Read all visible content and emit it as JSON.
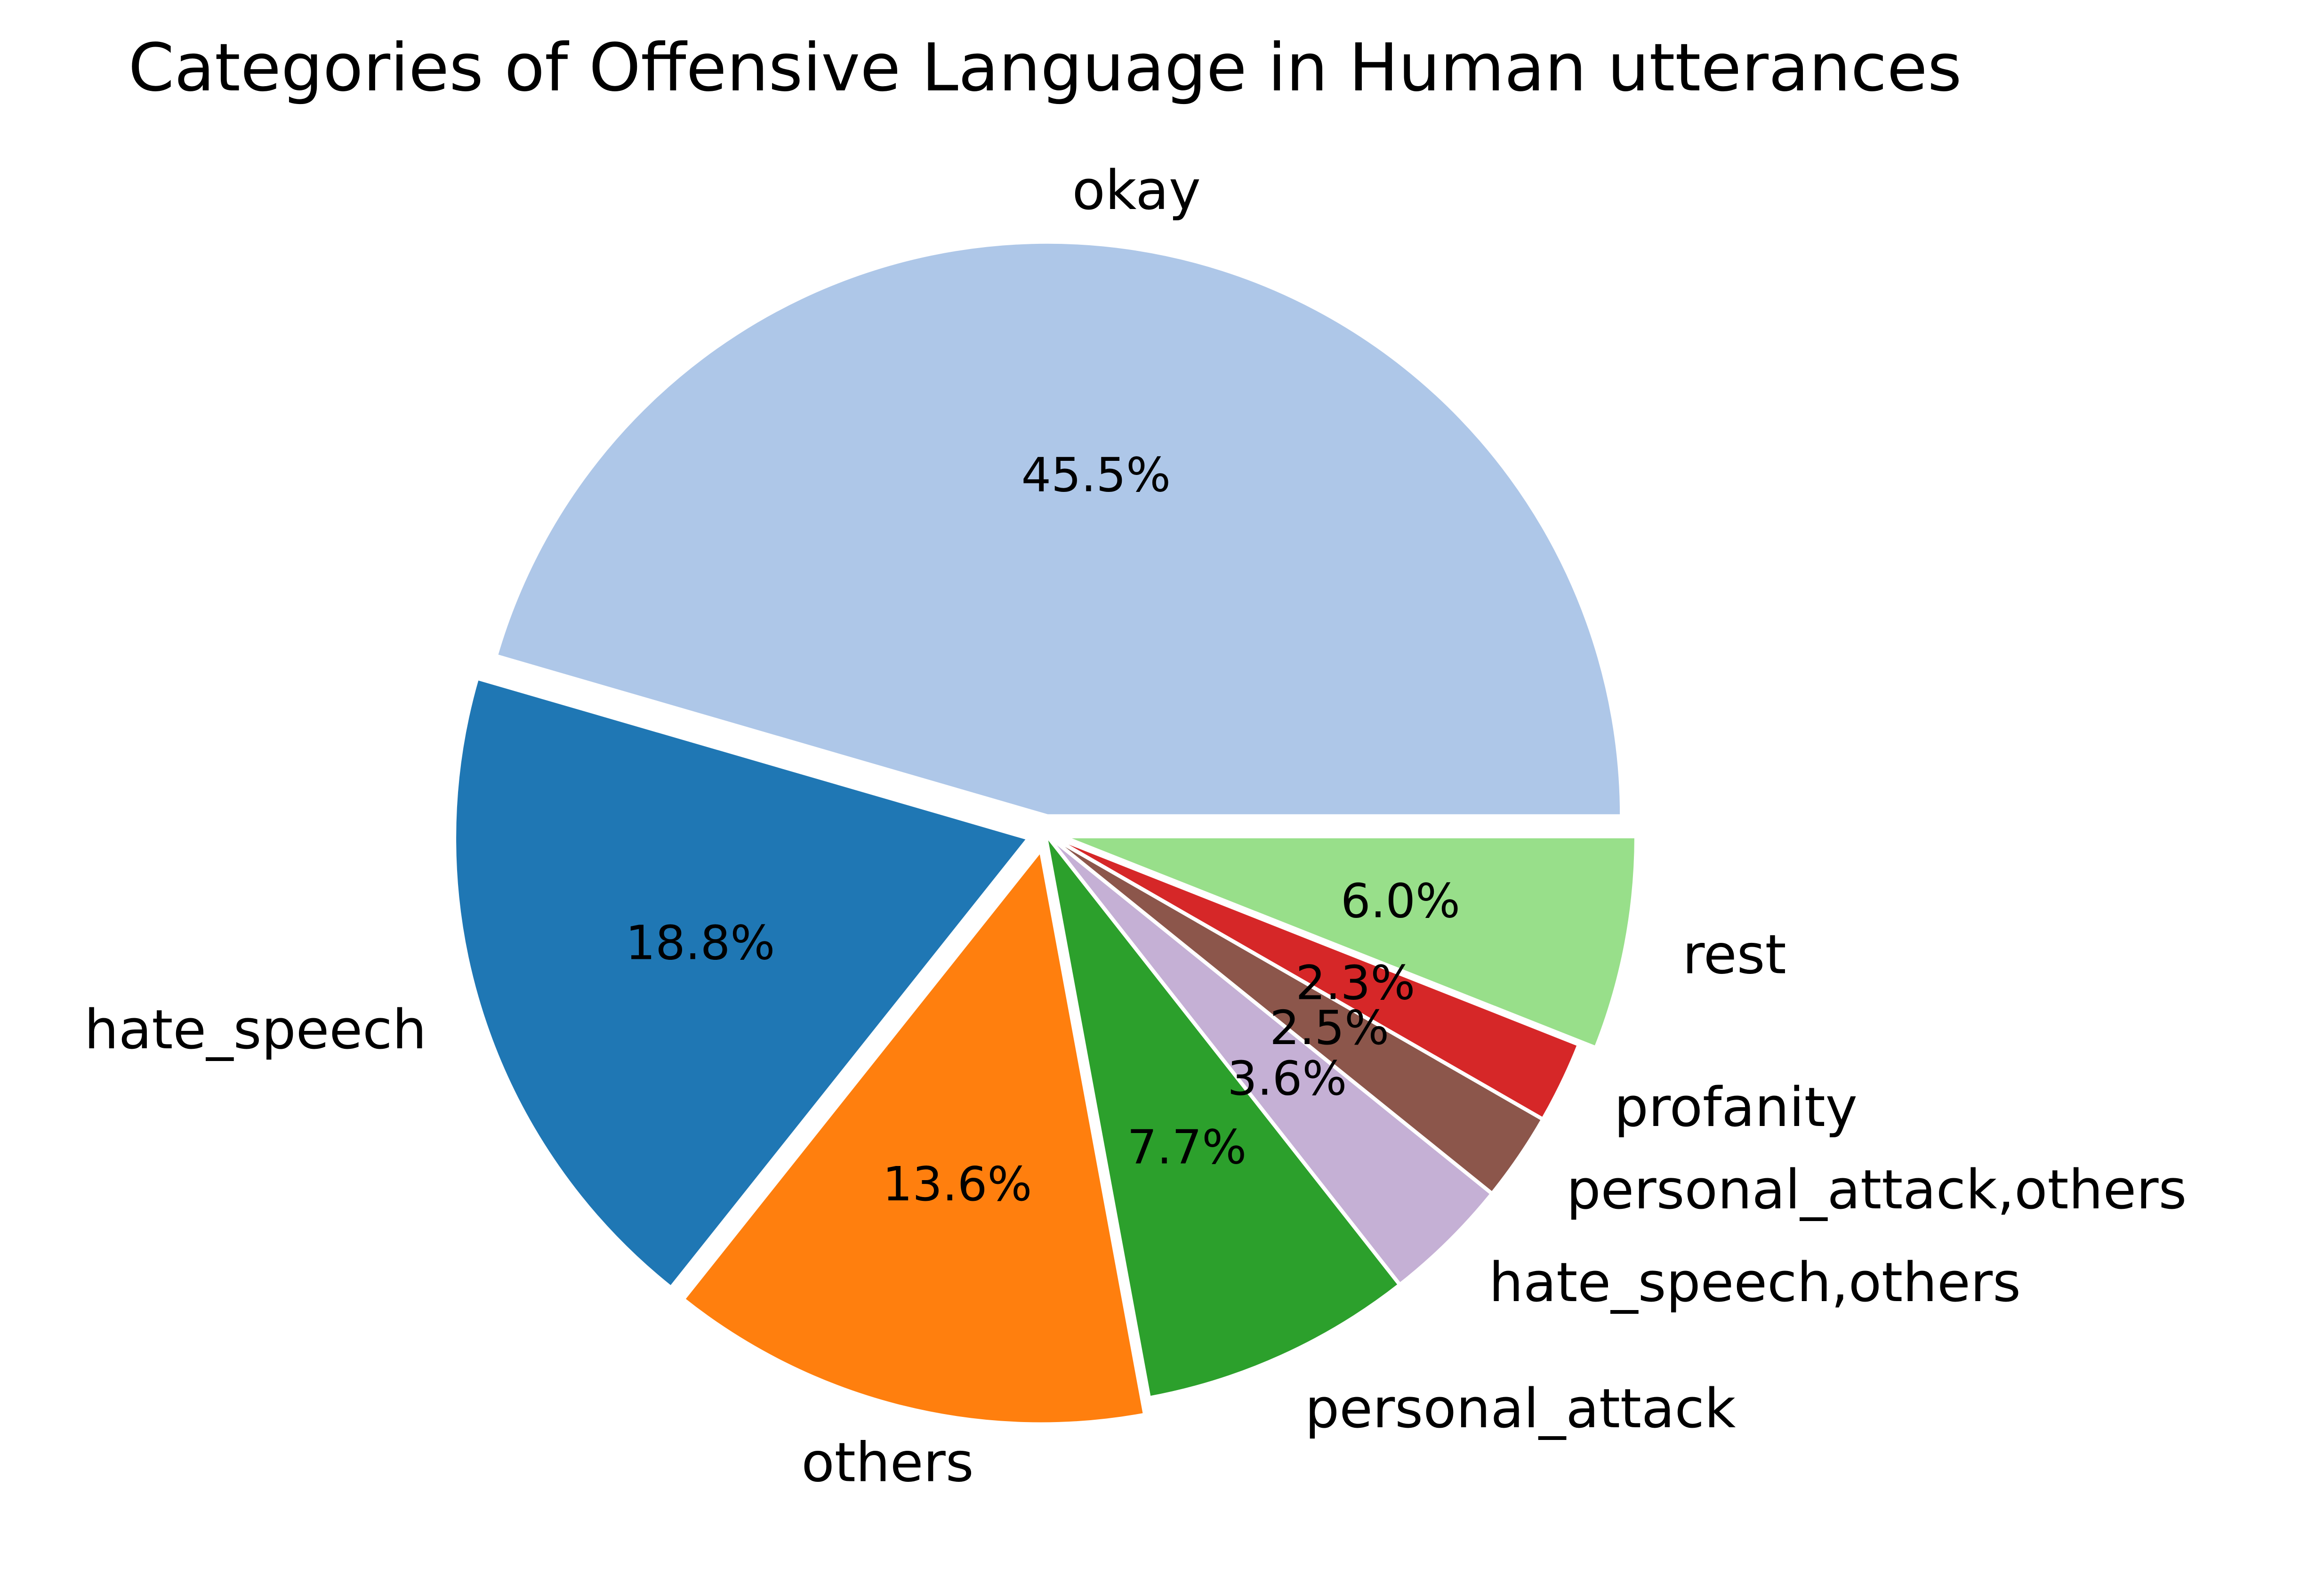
{
  "chart_data": {
    "type": "pie",
    "title": "Categories of Offensive Language in Human utterances",
    "slices": [
      {
        "label": "okay",
        "value": 45.5,
        "pct_label": "45.5%",
        "color": "#aec7e8"
      },
      {
        "label": "hate_speech",
        "value": 18.8,
        "pct_label": "18.8%",
        "color": "#1f77b4"
      },
      {
        "label": "others",
        "value": 13.6,
        "pct_label": "13.6%",
        "color": "#ff7f0e"
      },
      {
        "label": "personal_attack",
        "value": 7.7,
        "pct_label": "7.7%",
        "color": "#2ca02c"
      },
      {
        "label": "hate_speech,others",
        "value": 3.6,
        "pct_label": "3.6%",
        "color": "#c5b0d5"
      },
      {
        "label": "personal_attack,others",
        "value": 2.5,
        "pct_label": "2.5%",
        "color": "#8c564b"
      },
      {
        "label": "profanity",
        "value": 2.3,
        "pct_label": "2.3%",
        "color": "#d62728"
      },
      {
        "label": "rest",
        "value": 6.0,
        "pct_label": "6.0%",
        "color": "#98df8a"
      }
    ],
    "start_angle": 0,
    "direction": "counterclockwise",
    "explode": true
  }
}
